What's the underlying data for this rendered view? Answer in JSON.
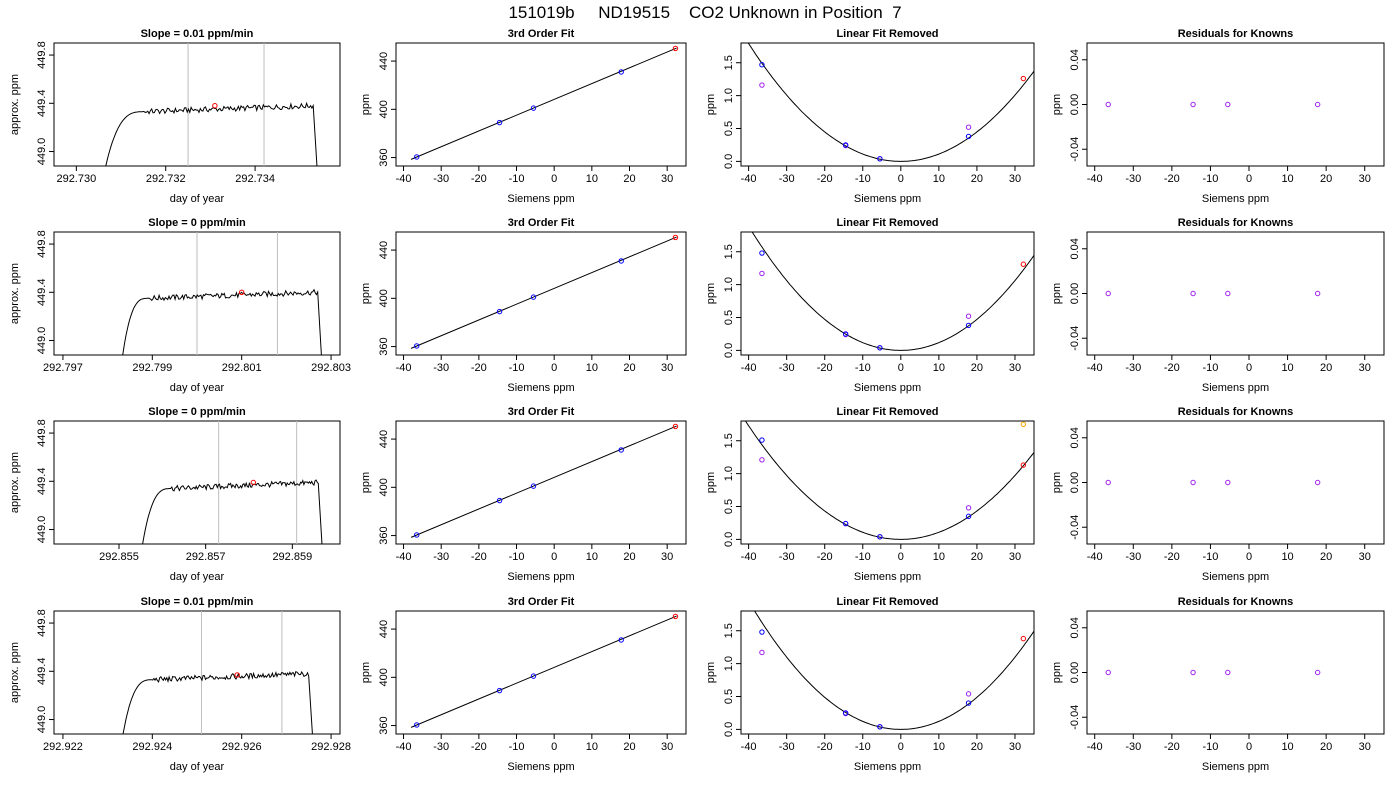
{
  "figure_title": "151019b     ND19515    CO2 Unknown in Position  7",
  "colors": {
    "trace": "#000000",
    "vline": "#bebebe",
    "unknown": "#ff0000",
    "fit_point": "#0000ff",
    "linear_point": "#a020f0",
    "extra_point": "#ffa500",
    "residual": "#a020f0"
  },
  "chart_data": [
    {
      "type": "line",
      "panel": "trace",
      "row": 1,
      "title": "Slope =  0.01  ppm/min",
      "xlabel": "day of year",
      "ylabel": "approx. ppm",
      "xlim": [
        292.7295,
        292.7359
      ],
      "ylim": [
        448.88,
        449.9
      ],
      "xticks": [
        "292.730",
        "292.732",
        "292.734"
      ],
      "xtick_values": [
        292.73,
        292.732,
        292.734
      ],
      "yticks": [
        "449.0",
        "449.4",
        "449.8"
      ],
      "ytick_values": [
        449.0,
        449.4,
        449.8
      ],
      "vlines": [
        292.7325,
        292.7342
      ],
      "trace": {
        "start": 292.7306,
        "rise_end": 292.7315,
        "flat_end": 292.7353,
        "end": 292.7354,
        "level": 449.36
      },
      "unknown_point": [
        292.7331,
        449.38
      ]
    },
    {
      "type": "line",
      "panel": "fit",
      "row": 1,
      "title": "3rd Order Fit",
      "xlabel": "Siemens ppm",
      "ylabel": "ppm",
      "xlim": [
        -42,
        35
      ],
      "ylim": [
        353,
        455
      ],
      "xticks": [
        "-40",
        "-30",
        "-20",
        "-10",
        "0",
        "10",
        "20",
        "30"
      ],
      "xtick_values": [
        -40,
        -30,
        -20,
        -10,
        0,
        10,
        20,
        30
      ],
      "yticks": [
        "360",
        "400",
        "440"
      ],
      "ytick_values": [
        360,
        400,
        440
      ],
      "line": [
        [
          -38,
          358.5
        ],
        [
          32.5,
          450.8
        ]
      ],
      "points": [
        [
          -36.5,
          360.5
        ],
        [
          -14.5,
          389.0
        ],
        [
          -5.5,
          401.0
        ],
        [
          17.8,
          431.0
        ]
      ],
      "unknown_point": [
        32.2,
        450.5
      ]
    },
    {
      "type": "scatter",
      "panel": "linear",
      "row": 1,
      "title": "Linear Fit Removed",
      "xlabel": "Siemens ppm",
      "ylabel": "ppm",
      "xlim": [
        -42,
        35
      ],
      "ylim": [
        -0.07,
        1.8
      ],
      "xticks": [
        "-40",
        "-30",
        "-20",
        "-10",
        "0",
        "10",
        "20",
        "30"
      ],
      "xtick_values": [
        -40,
        -30,
        -20,
        -10,
        0,
        10,
        20,
        30
      ],
      "yticks": [
        "0.0",
        "0.5",
        "1.0",
        "1.5"
      ],
      "ytick_values": [
        0.0,
        0.5,
        1.0,
        1.5
      ],
      "curve_coef": 0.00112,
      "points": [
        [
          -36.5,
          1.47
        ],
        [
          -14.5,
          0.25
        ],
        [
          -5.5,
          0.04
        ],
        [
          17.8,
          0.38
        ]
      ],
      "linear_points": [
        [
          -36.5,
          1.16
        ],
        [
          -14.5,
          0.24
        ],
        [
          -5.5,
          0.04
        ],
        [
          17.8,
          0.52
        ]
      ],
      "unknown_point": [
        32.2,
        1.26
      ],
      "extra_points": []
    },
    {
      "type": "scatter",
      "panel": "residual",
      "row": 1,
      "title": "Residuals for Knowns",
      "xlabel": "Siemens ppm",
      "ylabel": "ppm",
      "xlim": [
        -42,
        35
      ],
      "ylim": [
        -0.055,
        0.055
      ],
      "xticks": [
        "-40",
        "-30",
        "-20",
        "-10",
        "0",
        "10",
        "20",
        "30"
      ],
      "xtick_values": [
        -40,
        -30,
        -20,
        -10,
        0,
        10,
        20,
        30
      ],
      "yticks": [
        "-0.04",
        "0.00",
        "0.04"
      ],
      "ytick_values": [
        -0.04,
        0.0,
        0.04
      ],
      "points": [
        [
          -36.5,
          0.0
        ],
        [
          -14.5,
          0.0
        ],
        [
          -5.5,
          0.0
        ],
        [
          17.8,
          0.0
        ]
      ]
    },
    {
      "type": "line",
      "panel": "trace",
      "row": 2,
      "title": "Slope =  0  ppm/min",
      "xlabel": "day of year",
      "ylabel": "approx. ppm",
      "xlim": [
        292.7968,
        292.8032
      ],
      "ylim": [
        448.88,
        449.9
      ],
      "xticks": [
        "292.797",
        "292.799",
        "292.801",
        "292.803"
      ],
      "xtick_values": [
        292.797,
        292.799,
        292.801,
        292.803
      ],
      "yticks": [
        "449.0",
        "449.4",
        "449.8"
      ],
      "ytick_values": [
        449.0,
        449.4,
        449.8
      ],
      "vlines": [
        292.8,
        292.8018
      ],
      "trace": {
        "start": 292.7983,
        "rise_end": 292.7989,
        "flat_end": 292.8027,
        "end": 292.8028,
        "level": 449.38
      },
      "unknown_point": [
        292.801,
        449.4
      ]
    },
    {
      "type": "line",
      "panel": "fit",
      "row": 2,
      "title": "3rd Order Fit",
      "xlabel": "Siemens ppm",
      "ylabel": "ppm",
      "xlim": [
        -42,
        35
      ],
      "ylim": [
        353,
        455
      ],
      "xticks": [
        "-40",
        "-30",
        "-20",
        "-10",
        "0",
        "10",
        "20",
        "30"
      ],
      "xtick_values": [
        -40,
        -30,
        -20,
        -10,
        0,
        10,
        20,
        30
      ],
      "yticks": [
        "360",
        "400",
        "440"
      ],
      "ytick_values": [
        360,
        400,
        440
      ],
      "line": [
        [
          -38,
          358.5
        ],
        [
          32.5,
          450.8
        ]
      ],
      "points": [
        [
          -36.5,
          360.5
        ],
        [
          -14.5,
          389.0
        ],
        [
          -5.5,
          401.0
        ],
        [
          17.8,
          431.0
        ]
      ],
      "unknown_point": [
        32.2,
        450.5
      ]
    },
    {
      "type": "scatter",
      "panel": "linear",
      "row": 2,
      "title": "Linear Fit Removed",
      "xlabel": "Siemens ppm",
      "ylabel": "ppm",
      "xlim": [
        -42,
        35
      ],
      "ylim": [
        -0.07,
        1.8
      ],
      "xticks": [
        "-40",
        "-30",
        "-20",
        "-10",
        "0",
        "10",
        "20",
        "30"
      ],
      "xtick_values": [
        -40,
        -30,
        -20,
        -10,
        0,
        10,
        20,
        30
      ],
      "yticks": [
        "0.0",
        "0.5",
        "1.0",
        "1.5"
      ],
      "ytick_values": [
        0.0,
        0.5,
        1.0,
        1.5
      ],
      "curve_coef": 0.00118,
      "points": [
        [
          -36.5,
          1.48
        ],
        [
          -14.5,
          0.25
        ],
        [
          -5.5,
          0.04
        ],
        [
          17.8,
          0.38
        ]
      ],
      "linear_points": [
        [
          -36.5,
          1.17
        ],
        [
          -14.5,
          0.24
        ],
        [
          -5.5,
          0.04
        ],
        [
          17.8,
          0.52
        ]
      ],
      "unknown_point": [
        32.2,
        1.31
      ],
      "extra_points": []
    },
    {
      "type": "scatter",
      "panel": "residual",
      "row": 2,
      "title": "Residuals for Knowns",
      "xlabel": "Siemens ppm",
      "ylabel": "ppm",
      "xlim": [
        -42,
        35
      ],
      "ylim": [
        -0.055,
        0.055
      ],
      "xticks": [
        "-40",
        "-30",
        "-20",
        "-10",
        "0",
        "10",
        "20",
        "30"
      ],
      "xtick_values": [
        -40,
        -30,
        -20,
        -10,
        0,
        10,
        20,
        30
      ],
      "yticks": [
        "-0.04",
        "0.00",
        "0.04"
      ],
      "ytick_values": [
        -0.04,
        0.0,
        0.04
      ],
      "points": [
        [
          -36.5,
          0.0
        ],
        [
          -14.5,
          0.0
        ],
        [
          -5.5,
          0.0
        ],
        [
          17.8,
          0.0
        ]
      ]
    },
    {
      "type": "line",
      "panel": "trace",
      "row": 3,
      "title": "Slope =  0  ppm/min",
      "xlabel": "day of year",
      "ylabel": "approx. ppm",
      "xlim": [
        292.8535,
        292.8601
      ],
      "ylim": [
        448.88,
        449.9
      ],
      "xticks": [
        "292.855",
        "292.857",
        "292.859"
      ],
      "xtick_values": [
        292.855,
        292.857,
        292.859
      ],
      "yticks": [
        "449.0",
        "449.4",
        "449.8"
      ],
      "ytick_values": [
        449.0,
        449.4,
        449.8
      ],
      "vlines": [
        292.8573,
        292.8591
      ],
      "trace": {
        "start": 292.8555,
        "rise_end": 292.8562,
        "flat_end": 292.8596,
        "end": 292.8597,
        "level": 449.37
      },
      "unknown_point": [
        292.8581,
        449.39
      ]
    },
    {
      "type": "line",
      "panel": "fit",
      "row": 3,
      "title": "3rd Order Fit",
      "xlabel": "Siemens ppm",
      "ylabel": "ppm",
      "xlim": [
        -42,
        35
      ],
      "ylim": [
        353,
        455
      ],
      "xticks": [
        "-40",
        "-30",
        "-20",
        "-10",
        "0",
        "10",
        "20",
        "30"
      ],
      "xtick_values": [
        -40,
        -30,
        -20,
        -10,
        0,
        10,
        20,
        30
      ],
      "yticks": [
        "360",
        "400",
        "440"
      ],
      "ytick_values": [
        360,
        400,
        440
      ],
      "line": [
        [
          -38,
          358.5
        ],
        [
          32.5,
          450.8
        ]
      ],
      "points": [
        [
          -36.5,
          360.5
        ],
        [
          -14.5,
          389.0
        ],
        [
          -5.5,
          401.0
        ],
        [
          17.8,
          431.0
        ]
      ],
      "unknown_point": [
        32.2,
        450.5
      ]
    },
    {
      "type": "scatter",
      "panel": "linear",
      "row": 3,
      "title": "Linear Fit Removed",
      "xlabel": "Siemens ppm",
      "ylabel": "ppm",
      "xlim": [
        -42,
        35
      ],
      "ylim": [
        -0.07,
        1.8
      ],
      "xticks": [
        "-40",
        "-30",
        "-20",
        "-10",
        "0",
        "10",
        "20",
        "30"
      ],
      "xtick_values": [
        -40,
        -30,
        -20,
        -10,
        0,
        10,
        20,
        30
      ],
      "yticks": [
        "0.0",
        "0.5",
        "1.0",
        "1.5"
      ],
      "ytick_values": [
        0.0,
        0.5,
        1.0,
        1.5
      ],
      "curve_coef": 0.00108,
      "points": [
        [
          -36.5,
          1.51
        ],
        [
          -14.5,
          0.24
        ],
        [
          -5.5,
          0.04
        ],
        [
          17.8,
          0.35
        ]
      ],
      "linear_points": [
        [
          -36.5,
          1.21
        ],
        [
          -14.5,
          0.24
        ],
        [
          -5.5,
          0.04
        ],
        [
          17.8,
          0.48
        ]
      ],
      "unknown_point": [
        32.2,
        1.13
      ],
      "extra_points": [
        [
          32.2,
          1.75
        ]
      ]
    },
    {
      "type": "scatter",
      "panel": "residual",
      "row": 3,
      "title": "Residuals for Knowns",
      "xlabel": "Siemens ppm",
      "ylabel": "ppm",
      "xlim": [
        -42,
        35
      ],
      "ylim": [
        -0.055,
        0.055
      ],
      "xticks": [
        "-40",
        "-30",
        "-20",
        "-10",
        "0",
        "10",
        "20",
        "30"
      ],
      "xtick_values": [
        -40,
        -30,
        -20,
        -10,
        0,
        10,
        20,
        30
      ],
      "yticks": [
        "-0.04",
        "0.00",
        "0.04"
      ],
      "ytick_values": [
        -0.04,
        0.0,
        0.04
      ],
      "points": [
        [
          -36.5,
          0.0
        ],
        [
          -14.5,
          0.0
        ],
        [
          -5.5,
          0.0
        ],
        [
          17.8,
          0.0
        ]
      ]
    },
    {
      "type": "line",
      "panel": "trace",
      "row": 4,
      "title": "Slope =  0.01  ppm/min",
      "xlabel": "day of year",
      "ylabel": "approx. ppm",
      "xlim": [
        292.9218,
        292.9282
      ],
      "ylim": [
        448.88,
        449.9
      ],
      "xticks": [
        "292.922",
        "292.924",
        "292.926",
        "292.928"
      ],
      "xtick_values": [
        292.922,
        292.924,
        292.926,
        292.928
      ],
      "yticks": [
        "449.0",
        "449.4",
        "449.8"
      ],
      "ytick_values": [
        449.0,
        449.4,
        449.8
      ],
      "vlines": [
        292.9251,
        292.9269
      ],
      "trace": {
        "start": 292.9233,
        "rise_end": 292.924,
        "flat_end": 292.9275,
        "end": 292.9276,
        "level": 449.36
      },
      "unknown_point": [
        292.9259,
        449.37
      ]
    },
    {
      "type": "line",
      "panel": "fit",
      "row": 4,
      "title": "3rd Order Fit",
      "xlabel": "Siemens ppm",
      "ylabel": "ppm",
      "xlim": [
        -42,
        35
      ],
      "ylim": [
        353,
        455
      ],
      "xticks": [
        "-40",
        "-30",
        "-20",
        "-10",
        "0",
        "10",
        "20",
        "30"
      ],
      "xtick_values": [
        -40,
        -30,
        -20,
        -10,
        0,
        10,
        20,
        30
      ],
      "yticks": [
        "360",
        "400",
        "440"
      ],
      "ytick_values": [
        360,
        400,
        440
      ],
      "line": [
        [
          -38,
          358.5
        ],
        [
          32.5,
          450.8
        ]
      ],
      "points": [
        [
          -36.5,
          360.5
        ],
        [
          -14.5,
          389.0
        ],
        [
          -5.5,
          401.0
        ],
        [
          17.8,
          431.0
        ]
      ],
      "unknown_point": [
        32.2,
        450.5
      ]
    },
    {
      "type": "scatter",
      "panel": "linear",
      "row": 4,
      "title": "Linear Fit Removed",
      "xlabel": "Siemens ppm",
      "ylabel": "ppm",
      "xlim": [
        -42,
        35
      ],
      "ylim": [
        -0.07,
        1.8
      ],
      "xticks": [
        "-40",
        "-30",
        "-20",
        "-10",
        "0",
        "10",
        "20",
        "30"
      ],
      "xtick_values": [
        -40,
        -30,
        -20,
        -10,
        0,
        10,
        20,
        30
      ],
      "yticks": [
        "0.0",
        "0.5",
        "1.0",
        "1.5"
      ],
      "ytick_values": [
        0.0,
        0.5,
        1.0,
        1.5
      ],
      "curve_coef": 0.00122,
      "points": [
        [
          -36.5,
          1.48
        ],
        [
          -14.5,
          0.25
        ],
        [
          -5.5,
          0.04
        ],
        [
          17.8,
          0.4
        ]
      ],
      "linear_points": [
        [
          -36.5,
          1.17
        ],
        [
          -14.5,
          0.24
        ],
        [
          -5.5,
          0.04
        ],
        [
          17.8,
          0.54
        ]
      ],
      "unknown_point": [
        32.2,
        1.38
      ],
      "extra_points": []
    },
    {
      "type": "scatter",
      "panel": "residual",
      "row": 4,
      "title": "Residuals for Knowns",
      "xlabel": "Siemens ppm",
      "ylabel": "ppm",
      "xlim": [
        -42,
        35
      ],
      "ylim": [
        -0.055,
        0.055
      ],
      "xticks": [
        "-40",
        "-30",
        "-20",
        "-10",
        "0",
        "10",
        "20",
        "30"
      ],
      "xtick_values": [
        -40,
        -30,
        -20,
        -10,
        0,
        10,
        20,
        30
      ],
      "yticks": [
        "-0.04",
        "0.00",
        "0.04"
      ],
      "ytick_values": [
        -0.04,
        0.0,
        0.04
      ],
      "points": [
        [
          -36.5,
          0.0
        ],
        [
          -14.5,
          0.0
        ],
        [
          -5.5,
          0.0
        ],
        [
          17.8,
          0.0
        ]
      ]
    }
  ]
}
